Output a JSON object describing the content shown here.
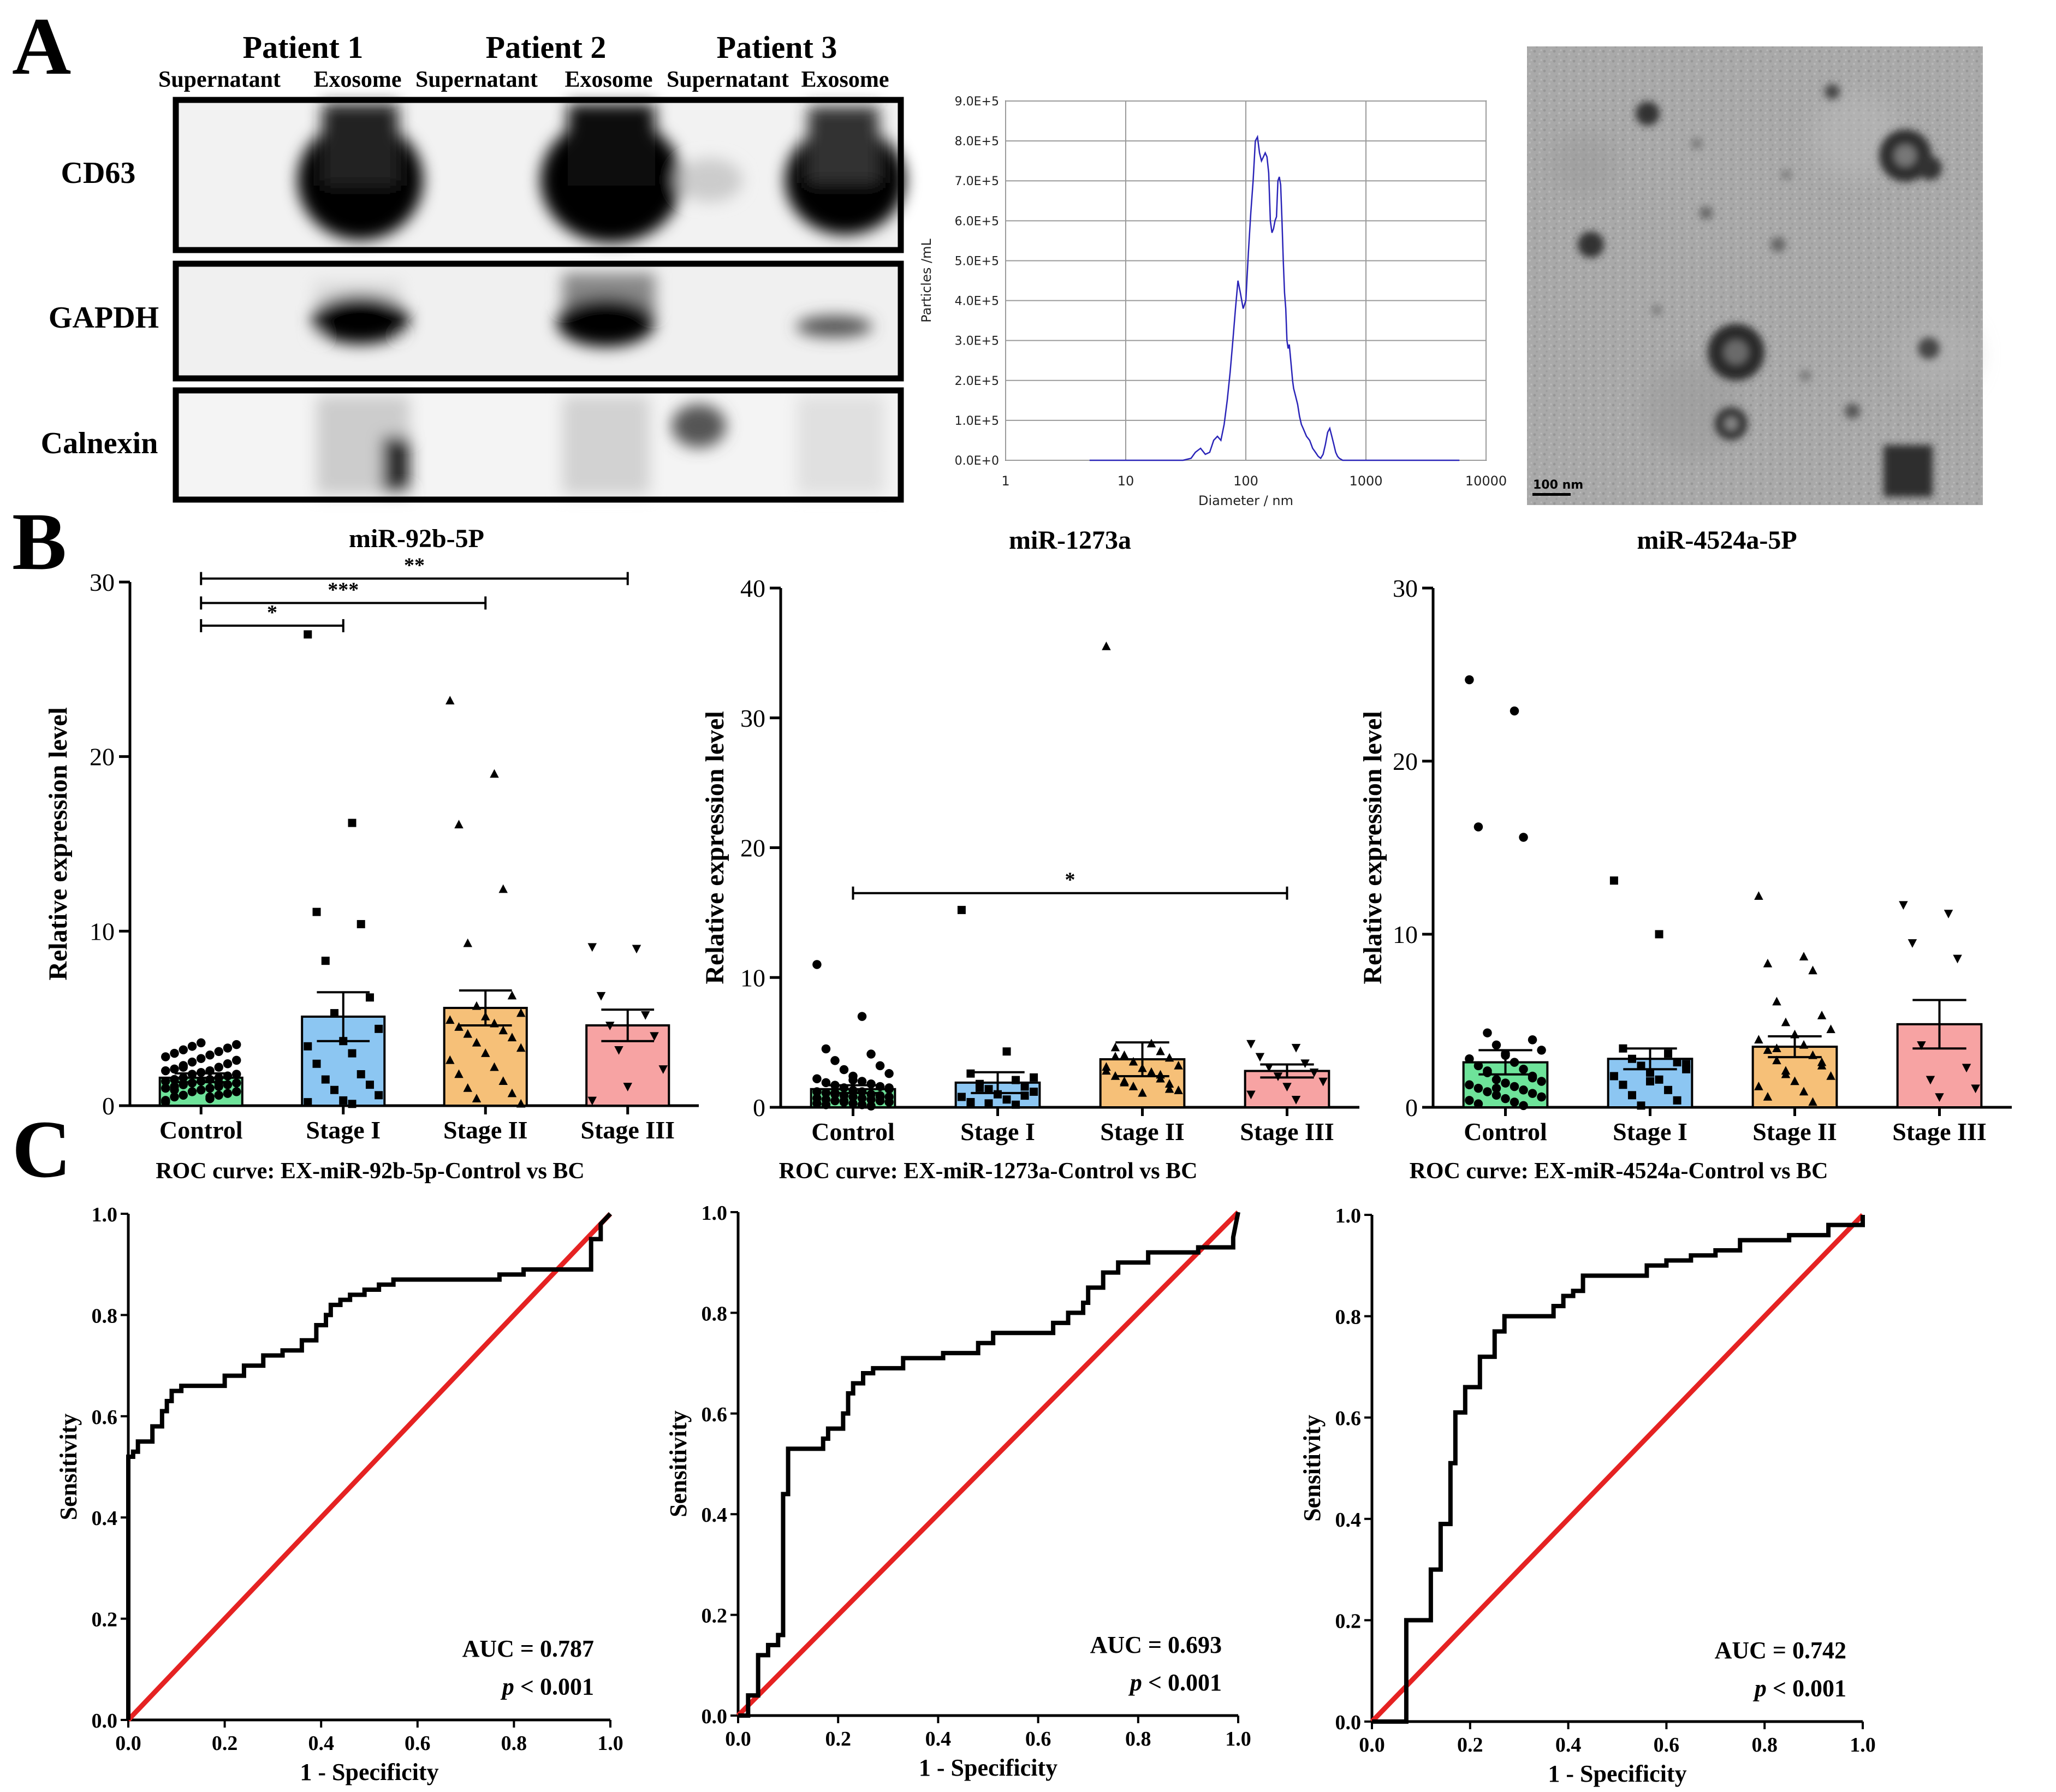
{
  "panel_letters": [
    "A",
    "B",
    "C"
  ],
  "blot": {
    "patients": [
      "Patient 1",
      "Patient 2",
      "Patient 3"
    ],
    "lanes": [
      "Supernatant",
      "Exosome",
      "Supernatant",
      "Exosome",
      "Supernatant",
      "Exosome"
    ],
    "proteins": [
      "CD63",
      "GAPDH",
      "Calnexin"
    ]
  },
  "tem": {
    "scale_bar_label": "100 nm"
  },
  "chart_data": [
    {
      "id": "nta",
      "type": "line",
      "title": "",
      "xlabel": "Diameter / nm",
      "ylabel": "Particles /mL",
      "xscale": "log",
      "xlim": [
        1,
        10000
      ],
      "xticks": [
        "1",
        "10",
        "100",
        "1000",
        "10000"
      ],
      "ylim": [
        0,
        900000
      ],
      "yticks": [
        "0.0E+0",
        "1.0E+5",
        "2.0E+5",
        "3.0E+5",
        "4.0E+5",
        "5.0E+5",
        "6.0E+5",
        "7.0E+5",
        "8.0E+5",
        "9.0E+5"
      ],
      "color": "#2a24b8",
      "x": [
        5,
        30,
        35,
        38,
        42,
        46,
        50,
        54,
        58,
        62,
        66,
        70,
        74,
        78,
        82,
        86,
        90,
        95,
        100,
        105,
        110,
        115,
        120,
        125,
        130,
        135,
        140,
        145,
        150,
        155,
        160,
        165,
        170,
        175,
        180,
        185,
        190,
        195,
        200,
        205,
        210,
        215,
        220,
        225,
        230,
        235,
        240,
        245,
        250,
        260,
        270,
        280,
        290,
        300,
        320,
        340,
        360,
        380,
        400,
        420,
        440,
        460,
        480,
        500,
        520,
        540,
        560,
        580,
        600,
        640,
        680,
        800,
        1000,
        6000
      ],
      "y": [
        0,
        0,
        5000,
        20000,
        30000,
        15000,
        20000,
        50000,
        60000,
        50000,
        90000,
        150000,
        220000,
        300000,
        380000,
        450000,
        420000,
        380000,
        400000,
        520000,
        620000,
        700000,
        800000,
        810000,
        770000,
        750000,
        760000,
        770000,
        760000,
        720000,
        600000,
        570000,
        580000,
        600000,
        610000,
        700000,
        710000,
        690000,
        600000,
        500000,
        420000,
        380000,
        300000,
        280000,
        290000,
        260000,
        230000,
        200000,
        180000,
        160000,
        140000,
        110000,
        90000,
        80000,
        60000,
        50000,
        30000,
        20000,
        10000,
        5000,
        15000,
        40000,
        70000,
        80000,
        60000,
        40000,
        20000,
        10000,
        5000,
        0,
        0,
        0,
        0,
        0
      ]
    },
    {
      "id": "bar-92b",
      "type": "bar",
      "title": "miR-92b-5P",
      "ylabel": "Relative expression level",
      "categories": [
        "Control",
        "Stage I",
        "Stage II",
        "Stage III"
      ],
      "values": [
        1.6,
        5.1,
        5.6,
        4.6
      ],
      "sem": [
        0.25,
        1.4,
        1.0,
        0.9
      ],
      "colors": [
        "#6ee39a",
        "#8cc6f2",
        "#f6c078",
        "#f7a3a3"
      ],
      "markers": [
        "circle",
        "square",
        "triangle-up",
        "triangle-down"
      ],
      "ylim": [
        0,
        30
      ],
      "yticks": [
        0,
        10,
        20,
        30
      ],
      "points": [
        [
          0.3,
          0.4,
          0.5,
          0.6,
          0.6,
          0.7,
          0.8,
          0.8,
          0.9,
          1.0,
          1.0,
          1.1,
          1.1,
          1.2,
          1.2,
          1.3,
          1.3,
          1.4,
          1.4,
          1.5,
          1.5,
          1.6,
          1.6,
          1.7,
          1.8,
          1.8,
          1.9,
          2.0,
          2.0,
          2.1,
          2.2,
          2.3,
          2.4,
          2.5,
          2.6,
          2.7,
          2.8,
          2.9,
          3.0,
          3.1,
          3.2,
          3.3,
          3.4,
          3.5,
          3.6,
          0.2,
          0.5,
          0.9,
          1.3,
          2.2
        ],
        [
          27.0,
          16.2,
          11.1,
          10.4,
          8.3,
          6.2,
          5.3,
          4.4,
          3.7,
          3.4,
          3.0,
          2.4,
          1.8,
          1.5,
          1.2,
          0.9,
          0.6,
          0.3,
          0.2,
          0.1
        ],
        [
          23.2,
          19.0,
          16.1,
          12.4,
          9.3,
          6.3,
          5.7,
          5.3,
          5.1,
          4.9,
          4.7,
          4.5,
          4.3,
          4.1,
          3.9,
          3.6,
          3.3,
          3.0,
          2.6,
          2.2,
          1.8,
          1.4,
          1.0,
          0.7,
          0.4,
          0.1
        ],
        [
          9.1,
          9.0,
          6.3,
          5.2,
          4.6,
          4.0,
          3.2,
          2.1,
          1.1,
          0.3
        ]
      ],
      "significance": [
        {
          "from": 0,
          "to": 1,
          "label": "*",
          "y": 27.5
        },
        {
          "from": 0,
          "to": 2,
          "label": "***",
          "y": 28.8
        },
        {
          "from": 0,
          "to": 3,
          "label": "**",
          "y": 30.2
        }
      ]
    },
    {
      "id": "bar-1273a",
      "type": "bar",
      "title": "miR-1273a",
      "ylabel": "Relative expression level",
      "categories": [
        "Control",
        "Stage I",
        "Stage II",
        "Stage III"
      ],
      "values": [
        1.4,
        1.9,
        3.7,
        2.8
      ],
      "sem": [
        0.3,
        0.8,
        1.3,
        0.5
      ],
      "colors": [
        "#6ee39a",
        "#8cc6f2",
        "#f6c078",
        "#f7a3a3"
      ],
      "markers": [
        "circle",
        "square",
        "triangle-up",
        "triangle-down"
      ],
      "ylim": [
        0,
        40
      ],
      "yticks": [
        0,
        10,
        20,
        30,
        40
      ],
      "points": [
        [
          11.0,
          7.0,
          4.5,
          4.1,
          3.6,
          3.2,
          2.9,
          2.6,
          2.4,
          2.2,
          2.0,
          1.9,
          1.8,
          1.7,
          1.6,
          1.5,
          1.4,
          1.3,
          1.2,
          1.2,
          1.1,
          1.0,
          1.0,
          0.9,
          0.9,
          0.8,
          0.8,
          0.7,
          0.7,
          0.6,
          0.6,
          0.5,
          0.5,
          0.4,
          0.4,
          0.3,
          0.3,
          0.2,
          0.2,
          0.1,
          1.1,
          0.8,
          0.5,
          1.5,
          2.1
        ],
        [
          15.2,
          4.3,
          2.6,
          2.1,
          1.8,
          1.6,
          1.4,
          1.2,
          1.0,
          0.8,
          0.6,
          0.4,
          0.2,
          1.5,
          0.9,
          0.3,
          2.3
        ],
        [
          35.5,
          4.9,
          4.6,
          4.3,
          4.0,
          3.8,
          3.5,
          3.2,
          3.0,
          2.8,
          2.6,
          2.4,
          2.2,
          2.0,
          1.8,
          1.6,
          1.3,
          1.1,
          3.1,
          2.7,
          3.9,
          2.5,
          1.9,
          1.4
        ],
        [
          4.9,
          4.6,
          3.9,
          3.4,
          3.1,
          2.7,
          2.4,
          2.0,
          1.6,
          1.0,
          0.6
        ]
      ],
      "significance": [
        {
          "from": 0,
          "to": 3,
          "label": "*",
          "y": 16.5
        }
      ]
    },
    {
      "id": "bar-4524a",
      "type": "bar",
      "title": "miR-4524a-5P",
      "ylabel": "Relative expression level",
      "categories": [
        "Control",
        "Stage I",
        "Stage II",
        "Stage III"
      ],
      "values": [
        2.6,
        2.8,
        3.5,
        4.8
      ],
      "sem": [
        0.7,
        0.6,
        0.6,
        1.4
      ],
      "colors": [
        "#6ee39a",
        "#8cc6f2",
        "#f6c078",
        "#f7a3a3"
      ],
      "markers": [
        "circle",
        "square",
        "triangle-up",
        "triangle-down"
      ],
      "ylim": [
        0,
        30
      ],
      "yticks": [
        0,
        10,
        20,
        30
      ],
      "points": [
        [
          24.7,
          22.9,
          16.2,
          15.6,
          4.3,
          3.9,
          3.6,
          3.3,
          3.0,
          2.8,
          2.6,
          2.4,
          2.2,
          2.0,
          1.8,
          1.6,
          1.5,
          1.4,
          1.3,
          1.2,
          1.1,
          1.0,
          0.9,
          0.8,
          0.7,
          0.6,
          0.5,
          0.4,
          0.3,
          0.2,
          0.1,
          2.1,
          1.7,
          1.1,
          0.6,
          3.1
        ],
        [
          13.1,
          10.0,
          3.4,
          3.1,
          2.8,
          2.6,
          2.4,
          2.2,
          2.0,
          1.8,
          1.6,
          1.3,
          1.0,
          0.7,
          0.4,
          0.1,
          2.5,
          1.5
        ],
        [
          12.2,
          8.7,
          8.3,
          7.9,
          6.1,
          5.3,
          4.9,
          4.5,
          4.2,
          3.9,
          3.6,
          3.3,
          3.0,
          2.7,
          2.4,
          2.1,
          1.8,
          1.5,
          1.2,
          0.9,
          0.6,
          0.3,
          3.4,
          2.6,
          1.9
        ],
        [
          11.7,
          11.2,
          9.5,
          8.6,
          3.6,
          2.3,
          1.6,
          1.1,
          0.6
        ]
      ],
      "significance": []
    },
    {
      "id": "roc-92b",
      "type": "line",
      "title": "ROC curve: EX-miR-92b-5p-Control vs BC",
      "xlabel": "1 - Specificity",
      "ylabel": "Sensitivity",
      "xlim": [
        0,
        1
      ],
      "ylim": [
        0,
        1
      ],
      "ticks": [
        "0.0",
        "0.2",
        "0.4",
        "0.6",
        "0.8",
        "1.0"
      ],
      "auc": "AUC = 0.787",
      "p_label": "< 0.001",
      "fpr": [
        0,
        0,
        0.01,
        0.01,
        0.02,
        0.02,
        0.05,
        0.05,
        0.07,
        0.07,
        0.08,
        0.08,
        0.09,
        0.09,
        0.11,
        0.11,
        0.2,
        0.2,
        0.24,
        0.24,
        0.28,
        0.28,
        0.32,
        0.32,
        0.36,
        0.36,
        0.39,
        0.39,
        0.41,
        0.41,
        0.42,
        0.42,
        0.44,
        0.44,
        0.46,
        0.46,
        0.49,
        0.49,
        0.52,
        0.52,
        0.55,
        0.55,
        0.77,
        0.77,
        0.82,
        0.82,
        0.96,
        0.96,
        0.98,
        0.98,
        1.0
      ],
      "tpr": [
        0,
        0.52,
        0.52,
        0.53,
        0.53,
        0.55,
        0.55,
        0.58,
        0.58,
        0.61,
        0.61,
        0.63,
        0.63,
        0.65,
        0.65,
        0.66,
        0.66,
        0.68,
        0.68,
        0.7,
        0.7,
        0.72,
        0.72,
        0.73,
        0.73,
        0.75,
        0.75,
        0.78,
        0.78,
        0.8,
        0.8,
        0.82,
        0.82,
        0.83,
        0.83,
        0.84,
        0.84,
        0.85,
        0.85,
        0.86,
        0.86,
        0.87,
        0.87,
        0.88,
        0.88,
        0.89,
        0.89,
        0.95,
        0.95,
        0.98,
        1.0
      ],
      "reference_color": "#e52222"
    },
    {
      "id": "roc-1273a",
      "type": "line",
      "title": "ROC curve: EX-miR-1273a-Control vs BC",
      "xlabel": "1 - Specificity",
      "ylabel": "Sensitivity",
      "xlim": [
        0,
        1
      ],
      "ylim": [
        0,
        1
      ],
      "ticks": [
        "0.0",
        "0.2",
        "0.4",
        "0.6",
        "0.8",
        "1.0"
      ],
      "auc": "AUC = 0.693",
      "p_label": "< 0.001",
      "fpr": [
        0,
        0.02,
        0.02,
        0.04,
        0.04,
        0.06,
        0.06,
        0.08,
        0.08,
        0.09,
        0.09,
        0.1,
        0.1,
        0.12,
        0.12,
        0.17,
        0.17,
        0.18,
        0.18,
        0.21,
        0.21,
        0.22,
        0.22,
        0.23,
        0.23,
        0.25,
        0.25,
        0.27,
        0.27,
        0.33,
        0.33,
        0.41,
        0.41,
        0.48,
        0.48,
        0.51,
        0.51,
        0.55,
        0.55,
        0.63,
        0.63,
        0.66,
        0.66,
        0.69,
        0.69,
        0.7,
        0.7,
        0.73,
        0.73,
        0.76,
        0.76,
        0.82,
        0.82,
        0.87,
        0.87,
        0.92,
        0.92,
        0.99,
        0.99,
        1.0
      ],
      "tpr": [
        0,
        0,
        0.04,
        0.04,
        0.12,
        0.12,
        0.14,
        0.14,
        0.16,
        0.16,
        0.44,
        0.44,
        0.53,
        0.53,
        0.53,
        0.53,
        0.55,
        0.55,
        0.57,
        0.57,
        0.6,
        0.6,
        0.64,
        0.64,
        0.66,
        0.66,
        0.68,
        0.68,
        0.69,
        0.69,
        0.71,
        0.71,
        0.72,
        0.72,
        0.74,
        0.74,
        0.76,
        0.76,
        0.76,
        0.76,
        0.78,
        0.78,
        0.8,
        0.8,
        0.82,
        0.82,
        0.85,
        0.85,
        0.88,
        0.88,
        0.9,
        0.9,
        0.92,
        0.92,
        0.92,
        0.92,
        0.93,
        0.93,
        0.95,
        1.0
      ],
      "reference_color": "#e52222"
    },
    {
      "id": "roc-4524a",
      "type": "line",
      "title": "ROC curve: EX-miR-4524a-Control vs BC",
      "xlabel": "1 - Specificity",
      "ylabel": "Sensitivity",
      "xlim": [
        0,
        1
      ],
      "ylim": [
        0,
        1
      ],
      "ticks": [
        "0.0",
        "0.2",
        "0.4",
        "0.6",
        "0.8",
        "1.0"
      ],
      "auc": "AUC = 0.742",
      "p_label": "< 0.001",
      "fpr": [
        0,
        0.07,
        0.07,
        0.12,
        0.12,
        0.14,
        0.14,
        0.16,
        0.16,
        0.17,
        0.17,
        0.19,
        0.19,
        0.22,
        0.22,
        0.25,
        0.25,
        0.27,
        0.27,
        0.29,
        0.29,
        0.37,
        0.37,
        0.39,
        0.39,
        0.41,
        0.41,
        0.43,
        0.43,
        0.45,
        0.45,
        0.56,
        0.56,
        0.6,
        0.6,
        0.65,
        0.65,
        0.7,
        0.7,
        0.75,
        0.75,
        0.85,
        0.85,
        0.93,
        0.93,
        1.0,
        1.0
      ],
      "tpr": [
        0,
        0,
        0.2,
        0.2,
        0.3,
        0.3,
        0.39,
        0.39,
        0.51,
        0.51,
        0.61,
        0.61,
        0.66,
        0.66,
        0.72,
        0.72,
        0.77,
        0.77,
        0.8,
        0.8,
        0.8,
        0.8,
        0.82,
        0.82,
        0.84,
        0.84,
        0.85,
        0.85,
        0.88,
        0.88,
        0.88,
        0.88,
        0.9,
        0.9,
        0.91,
        0.91,
        0.92,
        0.92,
        0.93,
        0.93,
        0.95,
        0.95,
        0.96,
        0.96,
        0.98,
        0.98,
        1.0
      ],
      "reference_color": "#e52222"
    }
  ]
}
